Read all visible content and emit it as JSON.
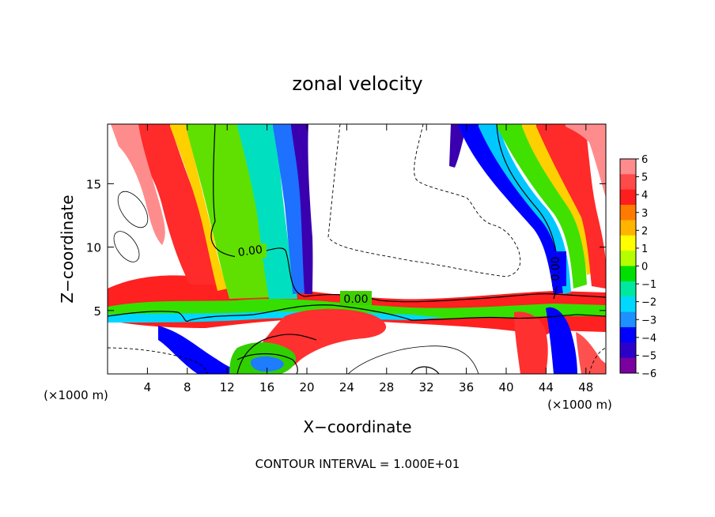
{
  "chart_data": {
    "type": "heatmap",
    "title": "zonal velocity",
    "xlabel": "X−coordinate",
    "ylabel": "Z−coordinate",
    "x_unit": "(×1000 m)",
    "y_unit": "(×1000 m)",
    "xlim": [
      0,
      50
    ],
    "ylim": [
      0,
      19.7
    ],
    "x_ticks": [
      "4",
      "8",
      "12",
      "16",
      "20",
      "24",
      "28",
      "32",
      "36",
      "40",
      "44",
      "48"
    ],
    "y_ticks": [
      "5",
      "10",
      "15"
    ],
    "footer": "CONTOUR INTERVAL = 1.000E+01",
    "contour_labels": [
      "0.00",
      "0.00",
      "0.00"
    ],
    "colorbar": {
      "labels": [
        "6",
        "5",
        "4",
        "3",
        "2",
        "1",
        "0",
        "−1",
        "−2",
        "−3",
        "−4",
        "−5",
        "−6"
      ],
      "colors": [
        "#ff8c8c",
        "#ff4a4a",
        "#ff1d1d",
        "#ff7a00",
        "#ffb400",
        "#ffff00",
        "#b4ff00",
        "#00e000",
        "#00e8a0",
        "#00d8ff",
        "#1e90ff",
        "#0000ff",
        "#2c00c8",
        "#7a00a0"
      ]
    }
  }
}
